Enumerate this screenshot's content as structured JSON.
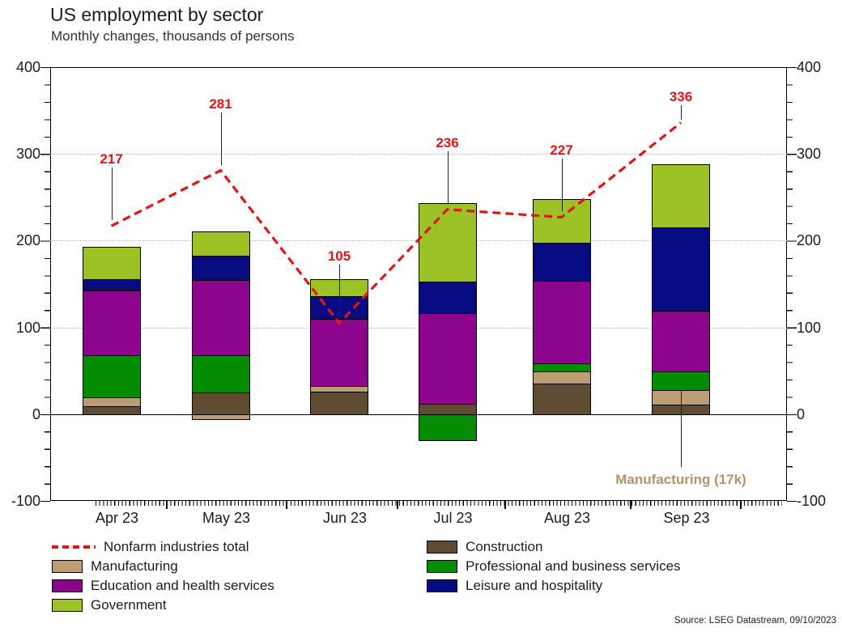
{
  "title": "US employment by sector",
  "subtitle": "Monthly changes, thousands of persons",
  "source": "Source: LSEG Datastream, 09/10/2023",
  "chart_data": {
    "type": "bar",
    "stacked": true,
    "title": "US employment by sector",
    "subtitle": "Monthly changes, thousands of persons",
    "categories": [
      "Apr 23",
      "May 23",
      "Jun 23",
      "Jul 23",
      "Aug 23",
      "Sep 23"
    ],
    "series": [
      {
        "name": "Construction",
        "color": "#5E4B31",
        "values": [
          9,
          25,
          26,
          12,
          35,
          11
        ]
      },
      {
        "name": "Manufacturing",
        "color": "#BD9E74",
        "values": [
          10,
          -6,
          6,
          0,
          14,
          17
        ]
      },
      {
        "name": "Professional and business services",
        "color": "#048C04",
        "values": [
          49,
          43,
          0,
          -30,
          10,
          21
        ]
      },
      {
        "name": "Education and health services",
        "color": "#8C058C",
        "values": [
          75,
          87,
          78,
          104,
          95,
          70
        ]
      },
      {
        "name": "Leisure and hospitality",
        "color": "#070B82",
        "values": [
          13,
          28,
          26,
          37,
          44,
          96
        ]
      },
      {
        "name": "Government",
        "color": "#9CC226",
        "values": [
          37,
          28,
          20,
          90,
          50,
          73
        ]
      }
    ],
    "line_series": {
      "name": "Nonfarm industries total",
      "color": "#E31414",
      "values": [
        217,
        281,
        105,
        236,
        227,
        336
      ]
    },
    "point_labels": [
      "217",
      "281",
      "105",
      "236",
      "227",
      "336"
    ],
    "callout": {
      "label": "Manufacturing (17k)",
      "color": "#B3936A",
      "category_index": 5,
      "segment": "Manufacturing"
    },
    "y_axis": {
      "ylim": [
        -100,
        400
      ],
      "tick_step": 100,
      "tick_values": [
        400,
        300,
        200,
        100,
        0,
        -100
      ],
      "tick_labels": [
        "400",
        "300",
        "200",
        "100",
        "0",
        "-100"
      ],
      "minor_step": 20,
      "gridlines_at": [
        100,
        200,
        300
      ],
      "zero_line": true,
      "labels_on_both_sides": true
    },
    "legend": {
      "left_column": [
        {
          "type": "dashed-line",
          "color": "#E31414",
          "label": "Nonfarm industries total"
        },
        {
          "type": "box",
          "color": "#BD9E74",
          "label": "Manufacturing"
        },
        {
          "type": "box",
          "color": "#8C058C",
          "label": "Education and health services"
        },
        {
          "type": "box",
          "color": "#9CC226",
          "label": "Government"
        }
      ],
      "right_column": [
        {
          "type": "box",
          "color": "#5E4B31",
          "label": "Construction"
        },
        {
          "type": "box",
          "color": "#048C04",
          "label": "Professional and business services"
        },
        {
          "type": "box",
          "color": "#070B82",
          "label": "Leisure and hospitality"
        }
      ]
    }
  }
}
